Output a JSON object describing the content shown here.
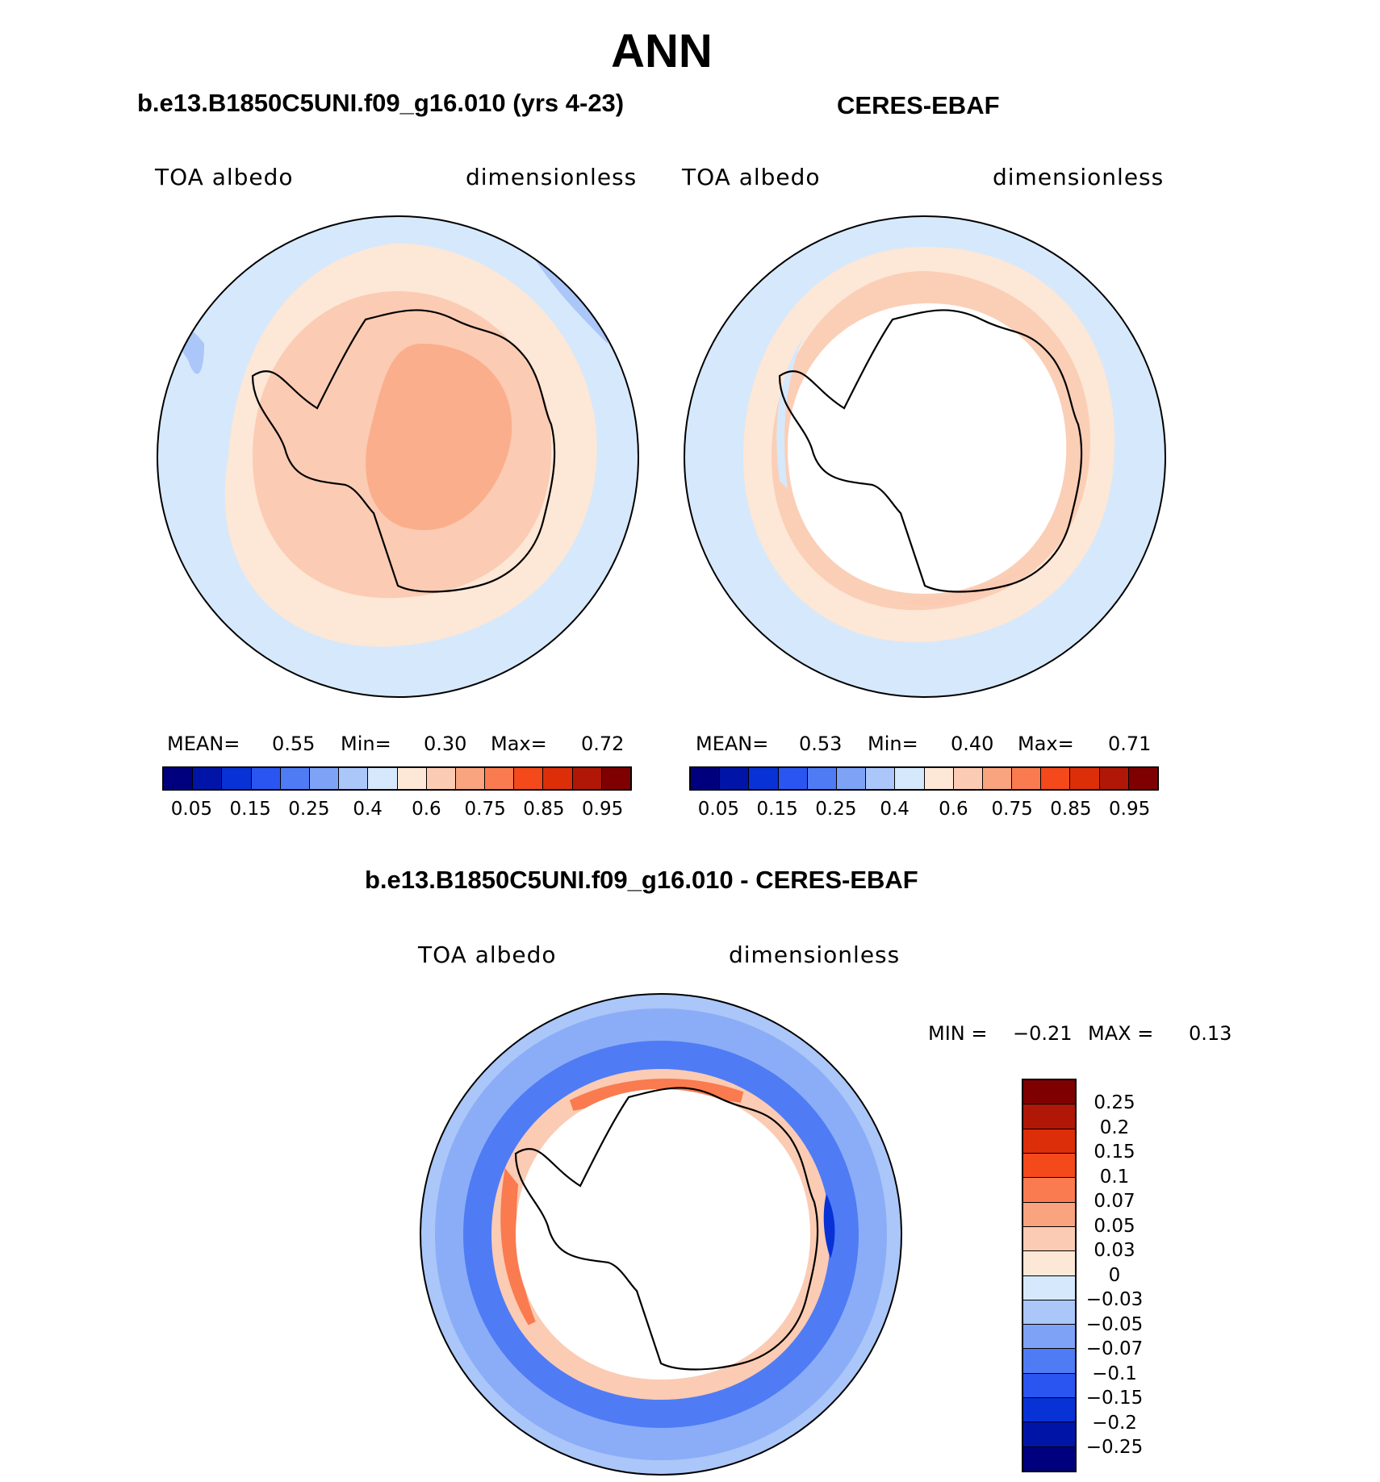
{
  "figure": {
    "title": "ANN"
  },
  "panels": [
    {
      "title": "b.e13.B1850C5UNI.f09_g16.010 (yrs 4-23)",
      "variable": "TOA albedo",
      "units": "dimensionless",
      "stats": {
        "mean_label": "MEAN=",
        "mean": "0.55",
        "min_label": "Min=",
        "min": "0.30",
        "max_label": "Max=",
        "max": "0.72"
      }
    },
    {
      "title": "CERES-EBAF",
      "variable": "TOA albedo",
      "units": "dimensionless",
      "stats": {
        "mean_label": "MEAN=",
        "mean": "0.53",
        "min_label": "Min=",
        "min": "0.40",
        "max_label": "Max=",
        "max": "0.71"
      }
    },
    {
      "title": "b.e13.B1850C5UNI.f09_g16.010 - CERES-EBAF",
      "variable": "TOA albedo",
      "units": "dimensionless",
      "stats": {
        "min_label": "MIN =",
        "min": "−0.21",
        "max_label": "MAX =",
        "max": "0.13"
      }
    }
  ],
  "colorbar_abs": {
    "colors": [
      "#00007f",
      "#0015a8",
      "#0832d6",
      "#2a55f0",
      "#4f7cf4",
      "#7ea3f6",
      "#abc6f8",
      "#d6e8fb",
      "#fde7d6",
      "#fbcbb3",
      "#f9a47f",
      "#f97b4f",
      "#f4491b",
      "#dd2e0a",
      "#b01706",
      "#7f0000"
    ],
    "ticks": [
      "0.05",
      "0.15",
      "0.25",
      "0.4",
      "0.6",
      "0.75",
      "0.85",
      "0.95"
    ]
  },
  "colorbar_diff": {
    "colors": [
      "#00007f",
      "#0015a8",
      "#0832d6",
      "#2a55f0",
      "#4f7cf4",
      "#7ea3f6",
      "#abc6f8",
      "#d6e8fb",
      "#fde7d6",
      "#fbcbb3",
      "#f9a47f",
      "#f97b4f",
      "#f4491b",
      "#dd2e0a",
      "#b01706",
      "#7f0000"
    ],
    "ticks": [
      "−0.25",
      "−0.2",
      "−0.15",
      "−0.1",
      "−0.07",
      "−0.05",
      "−0.03",
      "0",
      "0.03",
      "0.05",
      "0.07",
      "0.1",
      "0.15",
      "0.2",
      "0.25"
    ]
  }
}
